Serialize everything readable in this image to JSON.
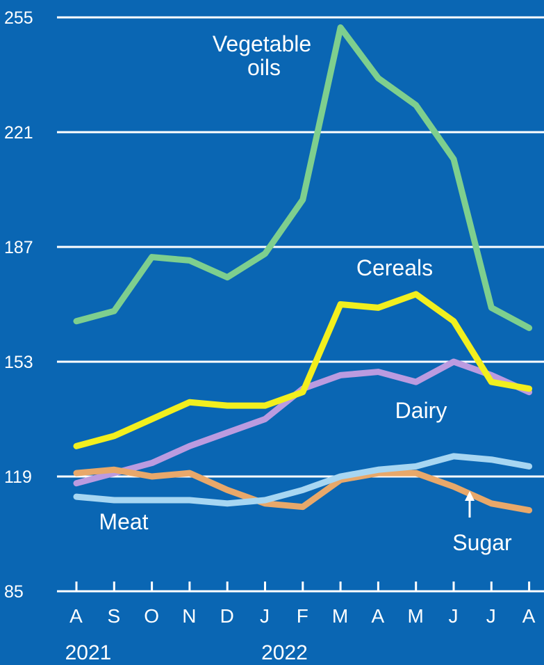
{
  "chart_data": {
    "type": "line",
    "categories": [
      "A",
      "S",
      "O",
      "N",
      "D",
      "J",
      "F",
      "M",
      "A",
      "M",
      "J",
      "J",
      "A"
    ],
    "years": [
      "2021",
      "2022"
    ],
    "ylim": [
      85,
      255
    ],
    "yticks": [
      85,
      119,
      153,
      187,
      221,
      255
    ],
    "grid": true,
    "background": "#0a66b3",
    "series": [
      {
        "key": "vegetable_oils",
        "label_lines": [
          "Vegetable",
          "oils"
        ],
        "color": "#7ecf8e",
        "values": [
          165,
          168,
          184,
          183,
          178,
          185,
          201,
          252,
          237,
          229,
          213,
          169,
          163
        ]
      },
      {
        "key": "cereals",
        "label_lines": [
          "Cereals"
        ],
        "color": "#f2ef1e",
        "values": [
          128,
          131,
          136,
          141,
          140,
          140,
          144,
          170,
          169,
          173,
          165,
          147,
          145
        ]
      },
      {
        "key": "dairy",
        "label_lines": [
          "Dairy"
        ],
        "color": "#bb9be0",
        "values": [
          117,
          120,
          123,
          128,
          132,
          136,
          145,
          149,
          150,
          147,
          153,
          149,
          144
        ]
      },
      {
        "key": "sugar",
        "label_lines": [
          "Sugar"
        ],
        "color": "#e8a86a",
        "values": [
          120,
          121,
          119,
          120,
          115,
          111,
          110,
          118,
          120,
          120,
          116,
          111,
          109
        ]
      },
      {
        "key": "meat",
        "label_lines": [
          "Meat"
        ],
        "color": "#a7d6f2",
        "values": [
          113,
          112,
          112,
          112,
          111,
          112,
          115,
          119,
          121,
          122,
          125,
          124,
          122
        ]
      }
    ]
  },
  "labels": {
    "vegetable_oils": [
      "Vegetable",
      "oils"
    ],
    "cereals": "Cereals",
    "dairy": "Dairy",
    "meat": "Meat",
    "sugar": "Sugar"
  }
}
